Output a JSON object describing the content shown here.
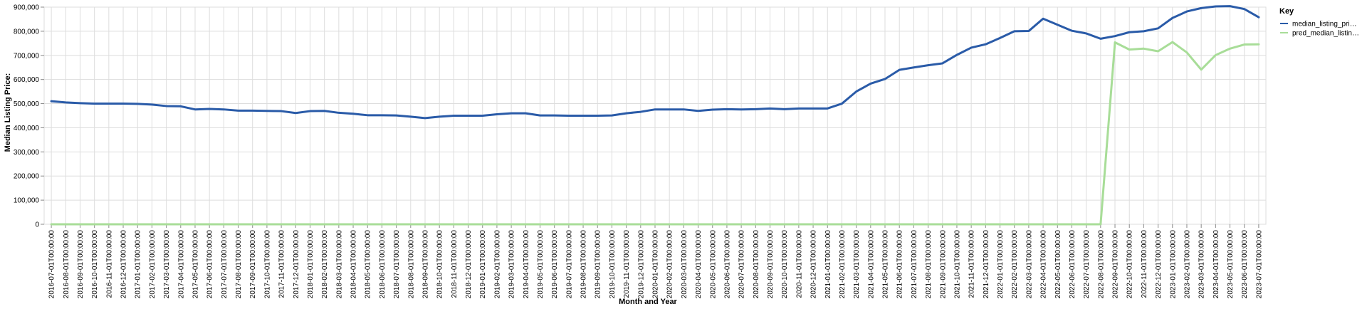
{
  "chart_data": {
    "type": "line",
    "xlabel": "Month and Year",
    "ylabel": "Median Listing Price:",
    "ylim": [
      0,
      900000
    ],
    "yticks": [
      "0",
      "100,000",
      "200,000",
      "300,000",
      "400,000",
      "500,000",
      "600,000",
      "700,000",
      "800,000",
      "900,000"
    ],
    "grid": true,
    "legend": {
      "title": "Key",
      "placement": "top-right",
      "entries": [
        {
          "label": "median_listing_pri…",
          "series": "median_listing_price"
        },
        {
          "label": "pred_median_listin…",
          "series": "pred_median_listing_price"
        }
      ]
    },
    "x": [
      "2016-07-01T00:00:00",
      "2016-08-01T00:00:00",
      "2016-09-01T00:00:00",
      "2016-10-01T00:00:00",
      "2016-11-01T00:00:00",
      "2016-12-01T00:00:00",
      "2017-01-01T00:00:00",
      "2017-02-01T00:00:00",
      "2017-03-01T00:00:00",
      "2017-04-01T00:00:00",
      "2017-05-01T00:00:00",
      "2017-06-01T00:00:00",
      "2017-07-01T00:00:00",
      "2017-08-01T00:00:00",
      "2017-09-01T00:00:00",
      "2017-10-01T00:00:00",
      "2017-11-01T00:00:00",
      "2017-12-01T00:00:00",
      "2018-01-01T00:00:00",
      "2018-02-01T00:00:00",
      "2018-03-01T00:00:00",
      "2018-04-01T00:00:00",
      "2018-05-01T00:00:00",
      "2018-06-01T00:00:00",
      "2018-07-01T00:00:00",
      "2018-08-01T00:00:00",
      "2018-09-01T00:00:00",
      "2018-10-01T00:00:00",
      "2018-11-01T00:00:00",
      "2018-12-01T00:00:00",
      "2019-01-01T00:00:00",
      "2019-02-01T00:00:00",
      "2019-03-01T00:00:00",
      "2019-04-01T00:00:00",
      "2019-05-01T00:00:00",
      "2019-06-01T00:00:00",
      "2019-07-01T00:00:00",
      "2019-08-01T00:00:00",
      "2019-09-01T00:00:00",
      "2019-10-01T00:00:00",
      "2019-11-01T00:00:00",
      "2019-12-01T00:00:00",
      "2020-01-01T00:00:00",
      "2020-02-01T00:00:00",
      "2020-03-01T00:00:00",
      "2020-04-01T00:00:00",
      "2020-05-01T00:00:00",
      "2020-06-01T00:00:00",
      "2020-07-01T00:00:00",
      "2020-08-01T00:00:00",
      "2020-09-01T00:00:00",
      "2020-10-01T00:00:00",
      "2020-11-01T00:00:00",
      "2020-12-01T00:00:00",
      "2021-01-01T00:00:00",
      "2021-02-01T00:00:00",
      "2021-03-01T00:00:00",
      "2021-04-01T00:00:00",
      "2021-05-01T00:00:00",
      "2021-06-01T00:00:00",
      "2021-07-01T00:00:00",
      "2021-08-01T00:00:00",
      "2021-09-01T00:00:00",
      "2021-10-01T00:00:00",
      "2021-11-01T00:00:00",
      "2021-12-01T00:00:00",
      "2022-01-01T00:00:00",
      "2022-02-01T00:00:00",
      "2022-03-01T00:00:00",
      "2022-04-01T00:00:00",
      "2022-05-01T00:00:00",
      "2022-06-01T00:00:00",
      "2022-07-01T00:00:00",
      "2022-08-01T00:00:00",
      "2022-09-01T00:00:00",
      "2022-10-01T00:00:00",
      "2022-11-01T00:00:00",
      "2022-12-01T00:00:00",
      "2023-01-01T00:00:00",
      "2023-02-01T00:00:00",
      "2023-03-01T00:00:00",
      "2023-04-01T00:00:00",
      "2023-05-01T00:00:00",
      "2023-06-01T00:00:00",
      "2023-07-01T00:00:00"
    ],
    "series": [
      {
        "name": "median_listing_price",
        "color": "#2a5ba8",
        "values": [
          510000,
          505000,
          502000,
          500000,
          500000,
          500000,
          499000,
          496000,
          490000,
          489000,
          476000,
          478000,
          476000,
          471000,
          471000,
          470000,
          469000,
          461000,
          469000,
          470000,
          462000,
          458000,
          452000,
          452000,
          451000,
          446000,
          440000,
          446000,
          450000,
          450000,
          450000,
          456000,
          460000,
          460000,
          451000,
          451000,
          450000,
          450000,
          450000,
          451000,
          460000,
          466000,
          476000,
          476000,
          476000,
          470000,
          475000,
          477000,
          476000,
          477000,
          480000,
          477000,
          480000,
          480000,
          480000,
          500000,
          550000,
          583000,
          602000,
          640000,
          650000,
          659000,
          667000,
          702000,
          732000,
          746000,
          772000,
          800000,
          801000,
          852000,
          827000,
          802000,
          791000,
          769000,
          780000,
          796000,
          800000,
          812000,
          855000,
          882000,
          896000,
          903000,
          904000,
          892000,
          858000
        ]
      },
      {
        "name": "pred_median_listing_price",
        "color": "#a8dd98",
        "values": [
          0,
          0,
          0,
          0,
          0,
          0,
          0,
          0,
          0,
          0,
          0,
          0,
          0,
          0,
          0,
          0,
          0,
          0,
          0,
          0,
          0,
          0,
          0,
          0,
          0,
          0,
          0,
          0,
          0,
          0,
          0,
          0,
          0,
          0,
          0,
          0,
          0,
          0,
          0,
          0,
          0,
          0,
          0,
          0,
          0,
          0,
          0,
          0,
          0,
          0,
          0,
          0,
          0,
          0,
          0,
          0,
          0,
          0,
          0,
          0,
          0,
          0,
          0,
          0,
          0,
          0,
          0,
          0,
          0,
          0,
          0,
          0,
          0,
          0,
          754000,
          724000,
          728000,
          717000,
          755000,
          712000,
          641000,
          701000,
          728000,
          745000,
          746000
        ]
      }
    ]
  }
}
